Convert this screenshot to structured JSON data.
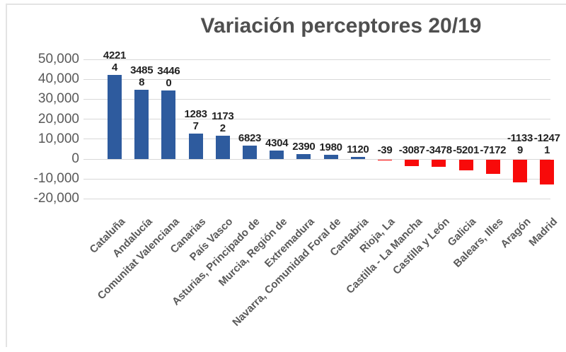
{
  "colors": {
    "positive_bar": "#2e5b9e",
    "negative_bar": "#f80a0a",
    "gridline": "#d8d8d8",
    "axis_text": "#595959",
    "data_label_text": "#222222",
    "title_text": "#4f4f4f",
    "frame_border": "#e3e3e3"
  },
  "y_axis": {
    "ticks": [
      {
        "label": "50,000",
        "value": 50000
      },
      {
        "label": "40,000",
        "value": 40000
      },
      {
        "label": "30,000",
        "value": 30000
      },
      {
        "label": "20,000",
        "value": 20000
      },
      {
        "label": "10,000",
        "value": 10000
      },
      {
        "label": "0",
        "value": 0
      },
      {
        "label": "-10,000",
        "value": -10000
      },
      {
        "label": "-20,000",
        "value": -20000
      }
    ]
  },
  "chart_data": {
    "type": "bar",
    "title": "Variación perceptores 20/19",
    "xlabel": "",
    "ylabel": "",
    "ylim": [
      -20000,
      50000
    ],
    "grid": true,
    "legend_position": "none",
    "categories": [
      "Cataluña",
      "Andalucía",
      "Comunitat Valenciana",
      "Canarias",
      "País Vasco",
      "Asturias, Principado de",
      "Murcia, Región de",
      "Extremadura",
      "Navarra, Comunidad Foral de",
      "Cantabria",
      "Rioja, La",
      "Castilla - La Mancha",
      "Castilla y León",
      "Galicia",
      "Balears, Illes",
      "Aragón",
      "Madrid"
    ],
    "values": [
      42214,
      34858,
      34460,
      12837,
      11732,
      6823,
      4304,
      2390,
      1980,
      1120,
      -39,
      -3087,
      -3478,
      -5201,
      -7172,
      -11339,
      -12471
    ],
    "data_labels": [
      "4221\n4",
      "3485\n8",
      "3446\n0",
      "1283\n7",
      "1173\n2",
      "6823",
      "4304",
      "2390",
      "1980",
      "1120",
      "-39",
      "-3087",
      "-3478",
      "-5201",
      "-7172",
      "-1133\n9",
      "-1247\n1"
    ]
  }
}
